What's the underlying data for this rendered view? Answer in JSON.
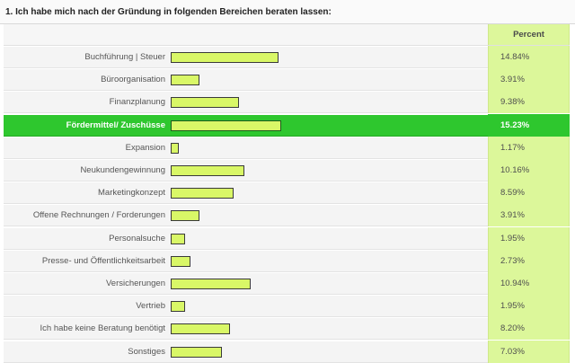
{
  "title": "1. Ich habe mich nach der Gründung in folgenden Bereichen beraten lassen:",
  "percent_header": "Percent",
  "colors": {
    "bar_fill": "#d9f767",
    "highlight": "#2ec72e",
    "percent_column": "#dcf79a"
  },
  "chart_data": {
    "type": "bar",
    "orientation": "horizontal",
    "highlighted_category": "Fördermittel/ Zuschüsse",
    "categories": [
      "Buchführung | Steuer",
      "Büroorganisation",
      "Finanzplanung",
      "Fördermittel/ Zuschüsse",
      "Expansion",
      "Neukundengewinnung",
      "Marketingkonzept",
      "Offene Rechnungen / Forderungen",
      "Personalsuche",
      "Presse- und Öffentlichkeitsarbeit",
      "Versicherungen",
      "Vertrieb",
      "Ich habe keine Beratung benötigt",
      "Sonstiges"
    ],
    "values": [
      14.84,
      3.91,
      9.38,
      15.23,
      1.17,
      10.16,
      8.59,
      3.91,
      1.95,
      2.73,
      10.94,
      1.95,
      8.2,
      7.03
    ],
    "value_labels": [
      "14.84%",
      "3.91%",
      "9.38%",
      "15.23%",
      "1.17%",
      "10.16%",
      "8.59%",
      "3.91%",
      "1.95%",
      "2.73%",
      "10.94%",
      "1.95%",
      "8.20%",
      "7.03%"
    ]
  }
}
